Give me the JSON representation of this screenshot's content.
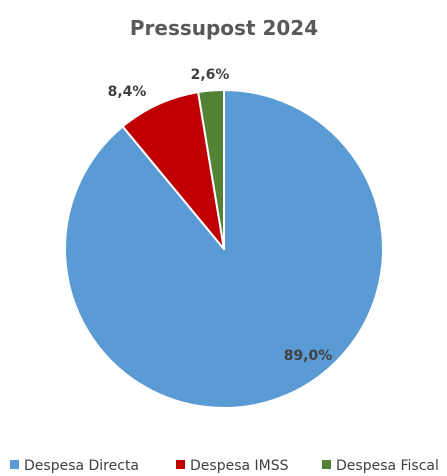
{
  "chart_data": {
    "type": "pie",
    "title": "Pressupost 2024",
    "categories": [
      "Despesa Directa",
      "Despesa IMSS",
      "Despesa Fiscal"
    ],
    "values": [
      89.0,
      8.4,
      2.6
    ],
    "data_labels": [
      "89,0%",
      "8,4%",
      "2,6%"
    ],
    "colors": [
      "#5B9BD5",
      "#C00000",
      "#548235"
    ],
    "legend_position": "bottom",
    "start_angle_deg": 0,
    "direction": "clockwise"
  }
}
